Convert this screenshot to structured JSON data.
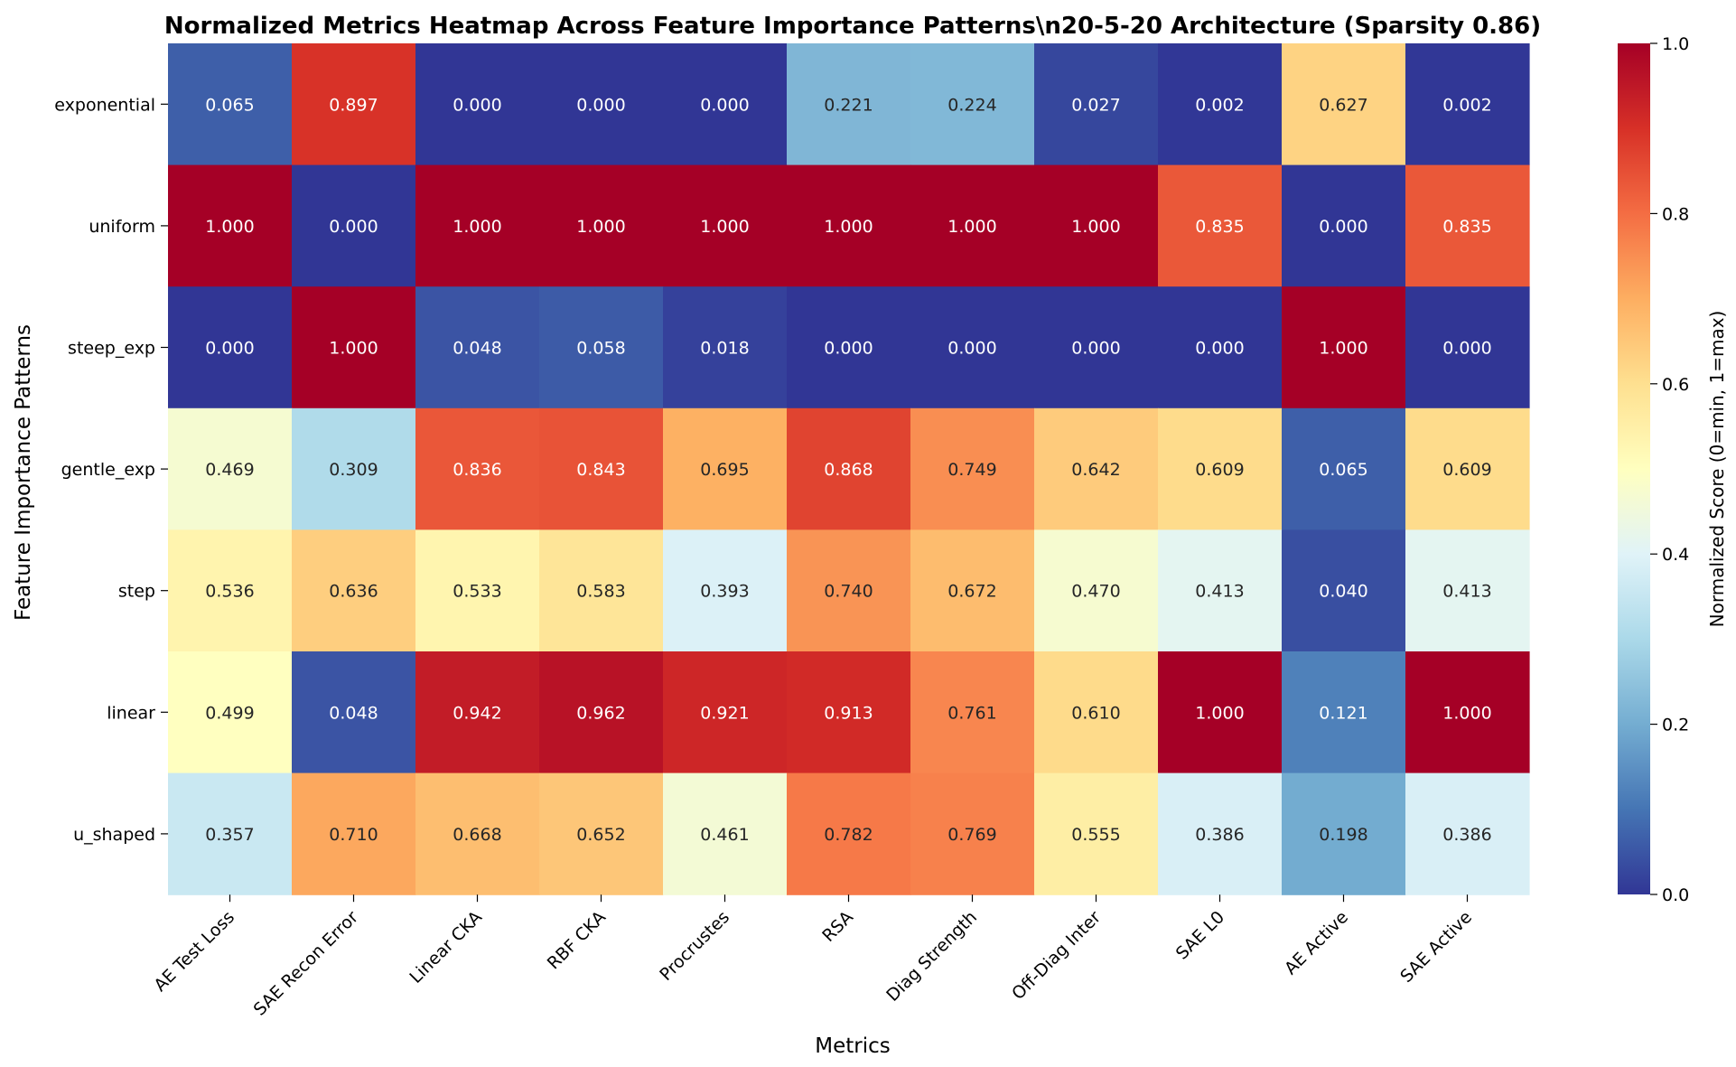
{
  "chart_data": {
    "type": "heatmap",
    "title": "Normalized Metrics Heatmap Across Feature Importance Patterns\\n20-5-20 Architecture (Sparsity 0.86)",
    "xlabel": "Metrics",
    "ylabel": "Feature Importance Patterns",
    "colorbar_label": "Normalized Score (0=min, 1=max)",
    "colormap": "RdYlBu_r",
    "vmin": 0,
    "vmax": 1,
    "colorbar_ticks": [
      "0.0",
      "0.2",
      "0.4",
      "0.6",
      "0.8",
      "1.0"
    ],
    "columns": [
      "AE Test Loss",
      "SAE Recon Error",
      "Linear CKA",
      "RBF CKA",
      "Procrustes",
      "RSA",
      "Diag Strength",
      "Off-Diag Inter",
      "SAE L0",
      "AE Active",
      "SAE Active"
    ],
    "rows": [
      "exponential",
      "uniform",
      "steep_exp",
      "gentle_exp",
      "step",
      "linear",
      "u_shaped"
    ],
    "values": [
      [
        0.065,
        0.897,
        0.0,
        0.0,
        0.0,
        0.221,
        0.224,
        0.027,
        0.002,
        0.627,
        0.002
      ],
      [
        1.0,
        0.0,
        1.0,
        1.0,
        1.0,
        1.0,
        1.0,
        1.0,
        0.835,
        0.0,
        0.835
      ],
      [
        0.0,
        1.0,
        0.048,
        0.058,
        0.018,
        0.0,
        0.0,
        0.0,
        0.0,
        1.0,
        0.0
      ],
      [
        0.469,
        0.309,
        0.836,
        0.843,
        0.695,
        0.868,
        0.749,
        0.642,
        0.609,
        0.065,
        0.609
      ],
      [
        0.536,
        0.636,
        0.533,
        0.583,
        0.393,
        0.74,
        0.672,
        0.47,
        0.413,
        0.04,
        0.413
      ],
      [
        0.499,
        0.048,
        0.942,
        0.962,
        0.921,
        0.913,
        0.761,
        0.61,
        1.0,
        0.121,
        1.0
      ],
      [
        0.357,
        0.71,
        0.668,
        0.652,
        0.461,
        0.782,
        0.769,
        0.555,
        0.386,
        0.198,
        0.386
      ]
    ],
    "value_format": "3 decimals"
  }
}
